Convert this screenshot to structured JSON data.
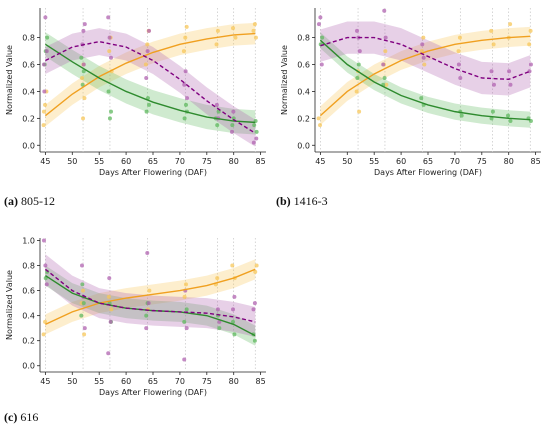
{
  "captions": [
    {
      "tag": "(a)",
      "text": "805-12"
    },
    {
      "tag": "(b)",
      "text": "1416-3"
    },
    {
      "tag": "(c)",
      "text": "616"
    }
  ],
  "colors": {
    "orange": "#f0a020",
    "green": "#2e8b2e",
    "purple": "#800080",
    "gray": "#888888"
  },
  "chart_data": [
    {
      "type": "scatter",
      "xlabel": "Days After Flowering (DAF)",
      "ylabel": "Normalized Value",
      "xticks": [
        45,
        50,
        55,
        60,
        65,
        70,
        75,
        80,
        85
      ],
      "yticks": [
        0.0,
        0.2,
        0.4,
        0.6,
        0.8
      ],
      "xlim": [
        44,
        86
      ],
      "ylim": [
        -0.05,
        1.02
      ],
      "grid": false,
      "sample_days": [
        45,
        52,
        57,
        64,
        71,
        77,
        80,
        84
      ],
      "series": [
        {
          "color": "orange",
          "style": "solid",
          "fit_x": [
            45,
            50,
            55,
            60,
            65,
            70,
            75,
            80,
            84
          ],
          "fit_y": [
            0.22,
            0.38,
            0.51,
            0.61,
            0.69,
            0.75,
            0.79,
            0.82,
            0.83
          ],
          "band": 0.08,
          "points": [
            [
              45,
              0.15
            ],
            [
              45,
              0.3
            ],
            [
              45,
              0.4
            ],
            [
              45,
              0.25
            ],
            [
              52,
              0.2
            ],
            [
              52,
              0.35
            ],
            [
              52,
              0.5
            ],
            [
              52,
              0.6
            ],
            [
              57,
              0.55
            ],
            [
              57,
              0.7
            ],
            [
              57,
              0.8
            ],
            [
              64,
              0.6
            ],
            [
              64,
              0.75
            ],
            [
              64,
              0.85
            ],
            [
              71,
              0.7
            ],
            [
              71,
              0.8
            ],
            [
              71,
              0.88
            ],
            [
              77,
              0.75
            ],
            [
              77,
              0.85
            ],
            [
              80,
              0.8
            ],
            [
              80,
              0.87
            ],
            [
              84,
              0.8
            ],
            [
              84,
              0.85
            ],
            [
              84,
              0.9
            ]
          ]
        },
        {
          "color": "green",
          "style": "solid",
          "fit_x": [
            45,
            50,
            55,
            60,
            65,
            70,
            75,
            80,
            84
          ],
          "fit_y": [
            0.75,
            0.62,
            0.5,
            0.4,
            0.32,
            0.26,
            0.21,
            0.18,
            0.17
          ],
          "band": 0.09,
          "points": [
            [
              45,
              0.7
            ],
            [
              45,
              0.8
            ],
            [
              45,
              0.6
            ],
            [
              52,
              0.55
            ],
            [
              52,
              0.65
            ],
            [
              52,
              0.45
            ],
            [
              57,
              0.25
            ],
            [
              57,
              0.4
            ],
            [
              57,
              0.2
            ],
            [
              64,
              0.3
            ],
            [
              64,
              0.25
            ],
            [
              64,
              0.35
            ],
            [
              71,
              0.25
            ],
            [
              71,
              0.2
            ],
            [
              71,
              0.3
            ],
            [
              77,
              0.2
            ],
            [
              77,
              0.15
            ],
            [
              77,
              0.25
            ],
            [
              80,
              0.15
            ],
            [
              80,
              0.2
            ],
            [
              84,
              0.1
            ],
            [
              84,
              0.15
            ],
            [
              84,
              0.18
            ]
          ]
        },
        {
          "color": "purple",
          "style": "dashed",
          "fit_x": [
            45,
            50,
            55,
            60,
            65,
            70,
            75,
            80,
            84
          ],
          "fit_y": [
            0.63,
            0.73,
            0.77,
            0.73,
            0.63,
            0.49,
            0.33,
            0.19,
            0.09
          ],
          "band": 0.1,
          "points": [
            [
              45,
              0.6
            ],
            [
              45,
              0.95
            ],
            [
              45,
              0.7
            ],
            [
              45,
              0.4
            ],
            [
              52,
              0.85
            ],
            [
              52,
              0.9
            ],
            [
              52,
              0.75
            ],
            [
              52,
              0.6
            ],
            [
              57,
              0.95
            ],
            [
              57,
              0.8
            ],
            [
              57,
              0.65
            ],
            [
              64,
              0.5
            ],
            [
              64,
              0.7
            ],
            [
              64,
              0.85
            ],
            [
              71,
              0.45
            ],
            [
              71,
              0.55
            ],
            [
              71,
              0.35
            ],
            [
              77,
              0.3
            ],
            [
              77,
              0.2
            ],
            [
              80,
              0.1
            ],
            [
              80,
              0.25
            ],
            [
              84,
              0.05
            ],
            [
              84,
              0.02
            ]
          ]
        }
      ]
    },
    {
      "type": "scatter",
      "xlabel": "Days After Flowering (DAF)",
      "ylabel": "Normalized Value",
      "xticks": [
        45,
        50,
        55,
        60,
        65,
        70,
        75,
        80,
        85
      ],
      "yticks": [
        0.0,
        0.2,
        0.4,
        0.6,
        0.8
      ],
      "xlim": [
        44,
        86
      ],
      "ylim": [
        -0.05,
        1.02
      ],
      "grid": false,
      "sample_days": [
        45,
        52,
        57,
        64,
        71,
        77,
        80,
        84
      ],
      "series": [
        {
          "color": "orange",
          "style": "solid",
          "fit_x": [
            45,
            50,
            55,
            60,
            65,
            70,
            75,
            80,
            84
          ],
          "fit_y": [
            0.22,
            0.4,
            0.53,
            0.63,
            0.7,
            0.75,
            0.78,
            0.8,
            0.81
          ],
          "band": 0.07,
          "points": [
            [
              45,
              0.2
            ],
            [
              45,
              0.15
            ],
            [
              52,
              0.25
            ],
            [
              52,
              0.4
            ],
            [
              52,
              0.55
            ],
            [
              57,
              0.45
            ],
            [
              57,
              0.6
            ],
            [
              57,
              0.7
            ],
            [
              64,
              0.6
            ],
            [
              64,
              0.7
            ],
            [
              64,
              0.8
            ],
            [
              71,
              0.7
            ],
            [
              71,
              0.8
            ],
            [
              77,
              0.75
            ],
            [
              77,
              0.85
            ],
            [
              80,
              0.8
            ],
            [
              80,
              0.9
            ],
            [
              84,
              0.75
            ],
            [
              84,
              0.85
            ]
          ]
        },
        {
          "color": "green",
          "style": "solid",
          "fit_x": [
            45,
            50,
            55,
            60,
            65,
            70,
            75,
            80,
            84
          ],
          "fit_y": [
            0.78,
            0.6,
            0.47,
            0.37,
            0.3,
            0.25,
            0.22,
            0.2,
            0.19
          ],
          "band": 0.06,
          "points": [
            [
              45,
              0.75
            ],
            [
              45,
              0.8
            ],
            [
              52,
              0.5
            ],
            [
              52,
              0.6
            ],
            [
              57,
              0.45
            ],
            [
              57,
              0.5
            ],
            [
              64,
              0.3
            ],
            [
              64,
              0.35
            ],
            [
              71,
              0.25
            ],
            [
              71,
              0.22
            ],
            [
              77,
              0.2
            ],
            [
              77,
              0.25
            ],
            [
              80,
              0.18
            ],
            [
              80,
              0.22
            ],
            [
              84,
              0.18
            ],
            [
              84,
              0.2
            ]
          ]
        },
        {
          "color": "purple",
          "style": "dashed",
          "fit_x": [
            45,
            50,
            55,
            60,
            65,
            70,
            75,
            80,
            84
          ],
          "fit_y": [
            0.74,
            0.8,
            0.8,
            0.75,
            0.66,
            0.57,
            0.5,
            0.49,
            0.55
          ],
          "band": 0.12,
          "points": [
            [
              45,
              0.9
            ],
            [
              45,
              0.95
            ],
            [
              45,
              0.6
            ],
            [
              52,
              0.85
            ],
            [
              52,
              0.8
            ],
            [
              52,
              0.7
            ],
            [
              57,
              1.0
            ],
            [
              57,
              0.8
            ],
            [
              57,
              0.6
            ],
            [
              64,
              0.75
            ],
            [
              64,
              0.65
            ],
            [
              71,
              0.6
            ],
            [
              71,
              0.5
            ],
            [
              77,
              0.45
            ],
            [
              77,
              0.55
            ],
            [
              80,
              0.55
            ],
            [
              80,
              0.45
            ],
            [
              84,
              0.55
            ],
            [
              84,
              0.6
            ]
          ]
        }
      ]
    },
    {
      "type": "scatter",
      "xlabel": "Days After Flowering (DAF)",
      "ylabel": "Normalized Value",
      "xticks": [
        45,
        50,
        55,
        60,
        65,
        70,
        75,
        80,
        85
      ],
      "yticks": [
        0.0,
        0.2,
        0.4,
        0.6,
        0.8,
        1.0
      ],
      "xlim": [
        44,
        86
      ],
      "ylim": [
        -0.05,
        1.02
      ],
      "grid": false,
      "sample_days": [
        45,
        52,
        57,
        64,
        71,
        77,
        80,
        84
      ],
      "series": [
        {
          "color": "orange",
          "style": "solid",
          "fit_x": [
            45,
            50,
            55,
            60,
            65,
            70,
            75,
            80,
            84
          ],
          "fit_y": [
            0.33,
            0.43,
            0.5,
            0.54,
            0.57,
            0.6,
            0.64,
            0.7,
            0.77
          ],
          "band": 0.08,
          "points": [
            [
              45,
              0.25
            ],
            [
              45,
              0.35
            ],
            [
              52,
              0.25
            ],
            [
              52,
              0.5
            ],
            [
              52,
              0.6
            ],
            [
              57,
              0.45
            ],
            [
              57,
              0.55
            ],
            [
              64,
              0.45
            ],
            [
              64,
              0.6
            ],
            [
              71,
              0.55
            ],
            [
              71,
              0.65
            ],
            [
              77,
              0.65
            ],
            [
              77,
              0.7
            ],
            [
              80,
              0.7
            ],
            [
              80,
              0.8
            ],
            [
              84,
              0.75
            ],
            [
              84,
              0.8
            ]
          ]
        },
        {
          "color": "green",
          "style": "solid",
          "fit_x": [
            45,
            50,
            55,
            60,
            65,
            70,
            75,
            80,
            84
          ],
          "fit_y": [
            0.72,
            0.58,
            0.5,
            0.46,
            0.44,
            0.43,
            0.4,
            0.33,
            0.24
          ],
          "band": 0.08,
          "points": [
            [
              45,
              0.7
            ],
            [
              45,
              0.75
            ],
            [
              52,
              0.65
            ],
            [
              52,
              0.5
            ],
            [
              52,
              0.4
            ],
            [
              57,
              0.5
            ],
            [
              57,
              0.35
            ],
            [
              64,
              0.4
            ],
            [
              64,
              0.5
            ],
            [
              71,
              0.45
            ],
            [
              71,
              0.35
            ],
            [
              77,
              0.4
            ],
            [
              77,
              0.3
            ],
            [
              80,
              0.35
            ],
            [
              80,
              0.25
            ],
            [
              84,
              0.25
            ],
            [
              84,
              0.2
            ]
          ]
        },
        {
          "color": "purple",
          "style": "dashed",
          "fit_x": [
            45,
            50,
            55,
            60,
            65,
            70,
            75,
            80,
            84
          ],
          "fit_y": [
            0.77,
            0.6,
            0.5,
            0.46,
            0.44,
            0.43,
            0.42,
            0.39,
            0.35
          ],
          "band": 0.12,
          "points": [
            [
              45,
              1.0
            ],
            [
              45,
              0.8
            ],
            [
              45,
              0.65
            ],
            [
              52,
              0.8
            ],
            [
              52,
              0.55
            ],
            [
              52,
              0.3
            ],
            [
              57,
              0.7
            ],
            [
              57,
              0.35
            ],
            [
              57,
              0.1
            ],
            [
              64,
              0.9
            ],
            [
              64,
              0.5
            ],
            [
              64,
              0.3
            ],
            [
              71,
              0.6
            ],
            [
              71,
              0.3
            ],
            [
              71,
              0.05
            ],
            [
              77,
              0.45
            ],
            [
              77,
              0.35
            ],
            [
              80,
              0.45
            ],
            [
              80,
              0.55
            ],
            [
              84,
              0.45
            ],
            [
              84,
              0.5
            ]
          ]
        }
      ]
    }
  ]
}
